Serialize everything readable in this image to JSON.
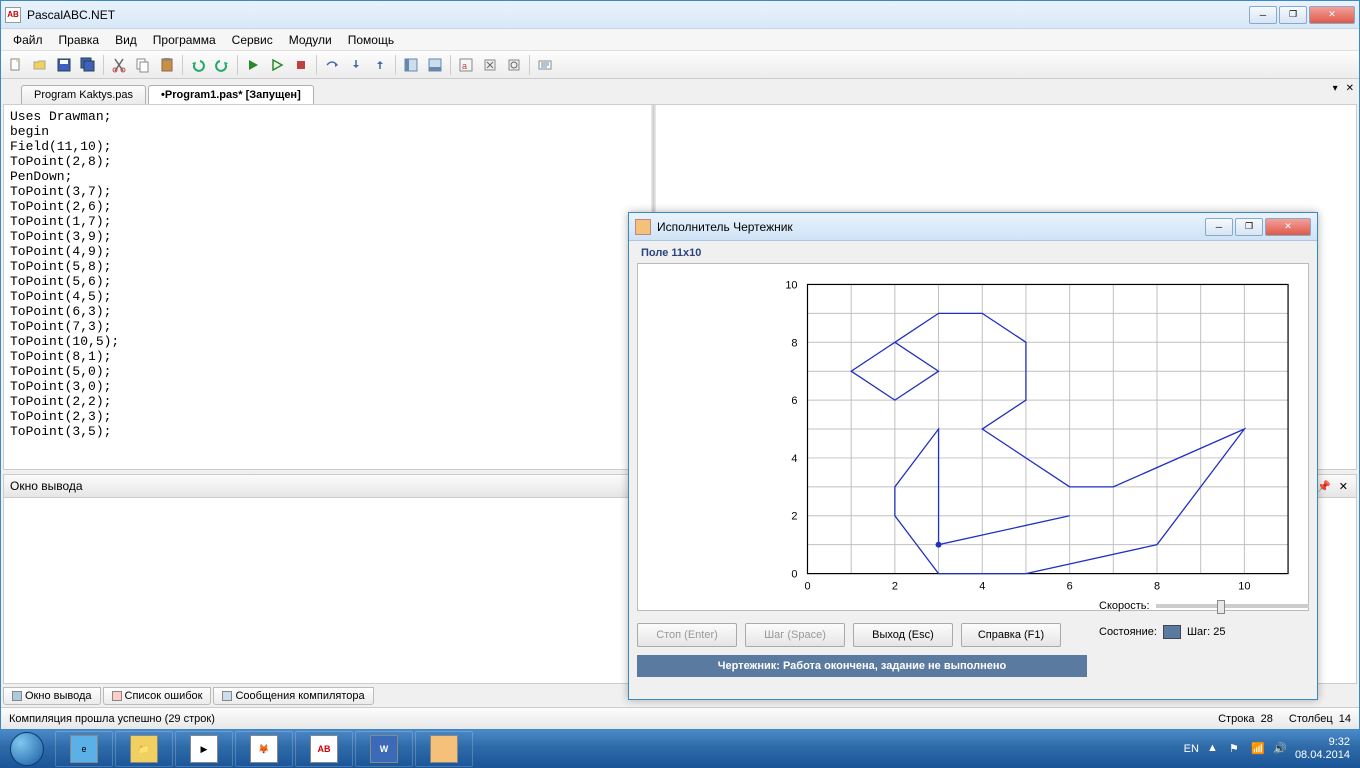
{
  "app": {
    "title": "PascalABC.NET",
    "icon_text": "AB"
  },
  "menu": [
    "Файл",
    "Правка",
    "Вид",
    "Программа",
    "Сервис",
    "Модули",
    "Помощь"
  ],
  "tabs": [
    {
      "label": "Program Kaktys.pas",
      "active": false
    },
    {
      "label": "•Program1.pas* [Запущен]",
      "active": true
    }
  ],
  "code_lines": [
    "Uses Drawman;",
    "begin",
    "Field(11,10);",
    "ToPoint(2,8);",
    "PenDown;",
    "ToPoint(3,7);",
    "ToPoint(2,6);",
    "ToPoint(1,7);",
    "ToPoint(3,9);",
    "ToPoint(4,9);",
    "ToPoint(5,8);",
    "ToPoint(5,6);",
    "ToPoint(4,5);",
    "ToPoint(6,3);",
    "ToPoint(7,3);",
    "ToPoint(10,5);",
    "ToPoint(8,1);",
    "ToPoint(5,0);",
    "ToPoint(3,0);",
    "ToPoint(2,2);",
    "ToPoint(2,3);",
    "ToPoint(3,5);"
  ],
  "output_panel": {
    "title": "Окно вывода"
  },
  "bottom_tabs": [
    "Окно вывода",
    "Список ошибок",
    "Сообщения компилятора"
  ],
  "status": {
    "left": "Компиляция прошла успешно (29 строк)",
    "line_label": "Строка",
    "line_val": "28",
    "col_label": "Столбец",
    "col_val": "14"
  },
  "drawer": {
    "title": "Исполнитель Чертежник",
    "field_label": "Поле 11x10",
    "grid": {
      "xmax": 11,
      "ymax": 10,
      "xtick": 2,
      "ytick": 2
    },
    "path_points": [
      [
        2,
        8
      ],
      [
        3,
        7
      ],
      [
        2,
        6
      ],
      [
        1,
        7
      ],
      [
        3,
        9
      ],
      [
        4,
        9
      ],
      [
        5,
        8
      ],
      [
        5,
        6
      ],
      [
        4,
        5
      ],
      [
        6,
        3
      ],
      [
        7,
        3
      ],
      [
        10,
        5
      ],
      [
        8,
        1
      ],
      [
        5,
        0
      ],
      [
        3,
        0
      ],
      [
        2,
        2
      ],
      [
        2,
        3
      ],
      [
        3,
        5
      ],
      [
        3,
        1
      ],
      [
        6,
        2
      ],
      [
        3,
        1
      ]
    ],
    "path_color": "#2030c0",
    "grid_color": "#c0c0c0",
    "axis_color": "#000000",
    "buttons": [
      {
        "label": "Стоп (Enter)",
        "disabled": true
      },
      {
        "label": "Шаг (Space)",
        "disabled": true
      },
      {
        "label": "Выход (Esc)",
        "disabled": false
      },
      {
        "label": "Справка (F1)",
        "disabled": false
      }
    ],
    "speed_label": "Скорость:",
    "state_label": "Состояние:",
    "step_label": "Шаг: 25",
    "status_text": "Чертежник: Работа окончена, задание не выполнено"
  },
  "tray": {
    "lang": "EN",
    "time": "9:32",
    "date": "08.04.2014"
  }
}
